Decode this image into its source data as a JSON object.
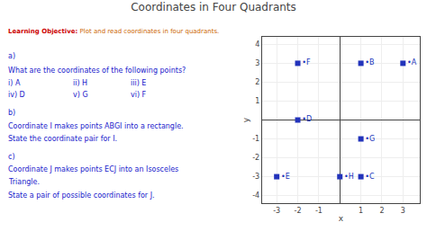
{
  "chart_data": {
    "type": "scatter",
    "title": "Coordinates in Four Quadrants",
    "annotations": [
      {
        "text": "Learning Objective:",
        "color": "#cc0000"
      },
      {
        "text": " Plot and read coordinates in four quadrants.",
        "color": "#cc6600"
      },
      {
        "text": "a)",
        "color": "#2222cc"
      },
      {
        "text": "What are the coordinates of the following points?",
        "color": "#2222cc"
      },
      {
        "text": "i) A",
        "color": "#2222cc"
      },
      {
        "text": "ii) H",
        "color": "#2222cc"
      },
      {
        "text": "iii) E",
        "color": "#2222cc"
      },
      {
        "text": "iv) D",
        "color": "#2222cc"
      },
      {
        "text": "v) G",
        "color": "#2222cc"
      },
      {
        "text": "vi) F",
        "color": "#2222cc"
      },
      {
        "text": "b)",
        "color": "#2222cc"
      },
      {
        "text": "Coordinate I makes points ABGI into a rectangle.",
        "color": "#2222cc"
      },
      {
        "text": "State the coordinate pair for I.",
        "color": "#2222cc"
      },
      {
        "text": "c)",
        "color": "#2222cc"
      },
      {
        "text": "Coordinate J makes points ECJ into an Isosceles",
        "color": "#2222cc"
      },
      {
        "text": "Triangle.",
        "color": "#2222cc"
      },
      {
        "text": "State a pair of possible coordinates for J.",
        "color": "#2222cc"
      }
    ],
    "x": [
      3,
      1,
      1,
      -2,
      -3,
      -2,
      1,
      0
    ],
    "values": [
      3,
      3,
      -3,
      0,
      -3,
      3,
      -1,
      -3
    ],
    "labels": [
      "•A",
      "•B",
      "•C",
      "•D",
      "•E",
      "•F",
      "•G",
      "•H"
    ],
    "color": "#2233bb",
    "marker": "square",
    "xlabel": "x",
    "ylabel": "y",
    "xlim": [
      -3.7,
      3.8
    ],
    "ylim": [
      -4.4,
      4.4
    ],
    "xticks": [
      -3,
      -2,
      -1,
      1,
      2,
      3
    ],
    "yticks": [
      -4,
      -3,
      -2,
      -1,
      1,
      2,
      3,
      4
    ],
    "grid": true
  }
}
